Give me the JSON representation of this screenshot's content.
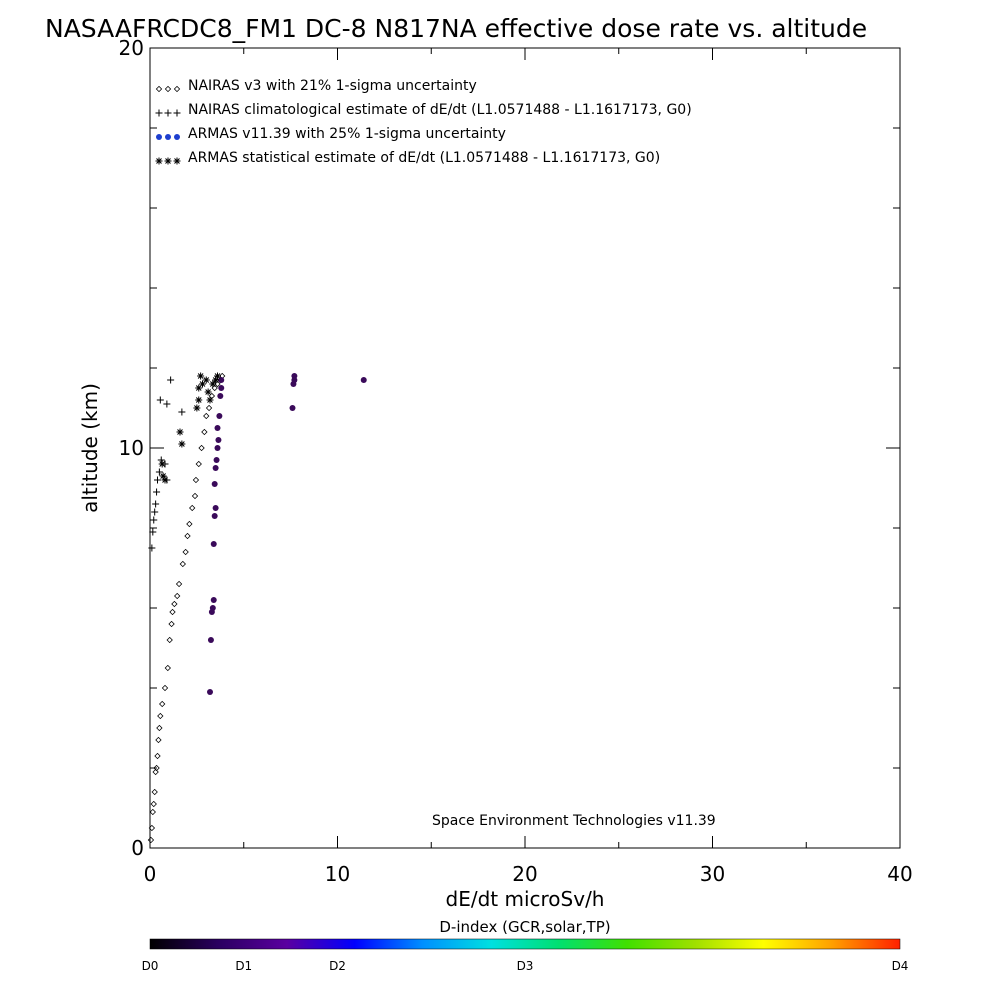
{
  "chart_data": {
    "type": "scatter",
    "title": "NASAAFRCDC8_FM1 DC-8   N817NA effective dose rate vs. altitude",
    "xlabel": "dE/dt microSv/h",
    "ylabel": "altitude (km)",
    "xlim": [
      0,
      40
    ],
    "ylim": [
      0,
      20
    ],
    "x_ticks": [
      0,
      10,
      20,
      30,
      40
    ],
    "y_ticks": [
      0,
      10,
      20
    ],
    "legend_placement": "top-left",
    "credit": "Space Environment Technologies v11.39",
    "series": [
      {
        "name": "NAIRAS v3 with 21% 1-sigma uncertainty",
        "marker": "diamond",
        "color": "#000000",
        "points": [
          [
            0.05,
            0.2
          ],
          [
            0.1,
            0.5
          ],
          [
            0.15,
            0.9
          ],
          [
            0.2,
            1.1
          ],
          [
            0.25,
            1.4
          ],
          [
            0.3,
            1.9
          ],
          [
            0.35,
            2.0
          ],
          [
            0.4,
            2.3
          ],
          [
            0.45,
            2.7
          ],
          [
            0.5,
            3.0
          ],
          [
            0.55,
            3.3
          ],
          [
            0.65,
            3.6
          ],
          [
            0.8,
            4.0
          ],
          [
            0.95,
            4.5
          ],
          [
            1.05,
            5.2
          ],
          [
            1.15,
            5.6
          ],
          [
            1.2,
            5.9
          ],
          [
            1.3,
            6.1
          ],
          [
            1.45,
            6.3
          ],
          [
            1.55,
            6.6
          ],
          [
            1.75,
            7.1
          ],
          [
            1.9,
            7.4
          ],
          [
            2.0,
            7.8
          ],
          [
            2.1,
            8.1
          ],
          [
            2.25,
            8.5
          ],
          [
            2.4,
            8.8
          ],
          [
            2.45,
            9.2
          ],
          [
            2.6,
            9.6
          ],
          [
            2.75,
            10.0
          ],
          [
            2.9,
            10.4
          ],
          [
            3.0,
            10.8
          ],
          [
            3.15,
            11.0
          ],
          [
            3.3,
            11.3
          ],
          [
            3.45,
            11.5
          ],
          [
            3.6,
            11.6
          ],
          [
            3.75,
            11.7
          ],
          [
            3.85,
            11.8
          ]
        ]
      },
      {
        "name": "NAIRAS climatological estimate of dE/dt (L1.0571488 - L1.1617173, G0)",
        "marker": "plus",
        "color": "#000000",
        "points": [
          [
            0.1,
            7.5
          ],
          [
            0.15,
            7.9
          ],
          [
            0.2,
            8.2
          ],
          [
            0.25,
            8.4
          ],
          [
            0.3,
            8.6
          ],
          [
            0.35,
            8.9
          ],
          [
            0.4,
            9.2
          ],
          [
            0.5,
            9.4
          ],
          [
            0.6,
            9.7
          ],
          [
            0.8,
            9.6
          ],
          [
            0.9,
            9.2
          ],
          [
            0.55,
            11.2
          ],
          [
            0.9,
            11.1
          ],
          [
            1.1,
            11.7
          ],
          [
            1.7,
            10.9
          ]
        ]
      },
      {
        "name": "ARMAS v11.39 with 25% 1-sigma uncertainty",
        "marker": "dot",
        "color": "#3a0a5a",
        "points": [
          [
            3.2,
            3.9
          ],
          [
            3.25,
            5.2
          ],
          [
            3.3,
            5.9
          ],
          [
            3.35,
            6.0
          ],
          [
            3.4,
            6.2
          ],
          [
            3.4,
            7.6
          ],
          [
            3.45,
            8.3
          ],
          [
            3.5,
            8.5
          ],
          [
            3.45,
            9.1
          ],
          [
            3.5,
            9.5
          ],
          [
            3.55,
            9.7
          ],
          [
            3.6,
            10.0
          ],
          [
            3.65,
            10.2
          ],
          [
            3.6,
            10.5
          ],
          [
            3.7,
            10.8
          ],
          [
            3.75,
            11.3
          ],
          [
            3.8,
            11.5
          ],
          [
            3.8,
            11.7
          ],
          [
            7.6,
            11.0
          ],
          [
            7.65,
            11.6
          ],
          [
            7.7,
            11.7
          ],
          [
            7.7,
            11.8
          ],
          [
            11.4,
            11.7
          ]
        ]
      },
      {
        "name": "ARMAS statistical estimate of dE/dt (L1.0571488 - L1.1617173, G0)",
        "marker": "asterisk",
        "color": "#000000",
        "points": [
          [
            0.65,
            9.6
          ],
          [
            0.7,
            9.3
          ],
          [
            0.8,
            9.2
          ],
          [
            1.6,
            10.4
          ],
          [
            1.7,
            10.1
          ],
          [
            2.5,
            11.0
          ],
          [
            2.6,
            11.2
          ],
          [
            2.6,
            11.5
          ],
          [
            2.7,
            11.8
          ],
          [
            2.8,
            11.6
          ],
          [
            3.0,
            11.7
          ],
          [
            3.1,
            11.4
          ],
          [
            3.2,
            11.2
          ],
          [
            3.35,
            11.6
          ],
          [
            3.5,
            11.7
          ],
          [
            3.6,
            11.8
          ]
        ]
      }
    ],
    "colorbar": {
      "title": "D-index (GCR,solar,TP)",
      "labels": [
        {
          "text": "D0",
          "pos": 0.0
        },
        {
          "text": "D1",
          "pos": 0.125
        },
        {
          "text": "D2",
          "pos": 0.25
        },
        {
          "text": "D3",
          "pos": 0.5
        },
        {
          "text": "D4",
          "pos": 1.0
        }
      ],
      "stops": [
        "#000000",
        "#2a0060",
        "#5a00a0",
        "#0000ff",
        "#0090ff",
        "#00e0e0",
        "#00e070",
        "#40e000",
        "#a0e000",
        "#ffff00",
        "#ffa000",
        "#ff2000"
      ]
    }
  }
}
